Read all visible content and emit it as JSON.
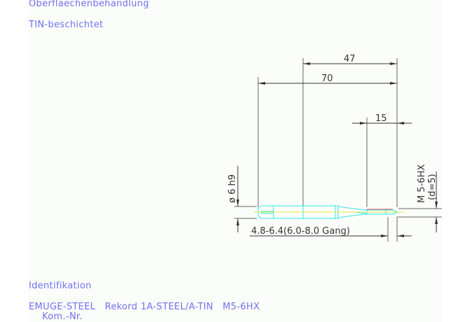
{
  "header": {
    "surface_label": "Oberflaechenbehandlung",
    "surface_value": "TIN-beschichtet"
  },
  "drawing": {
    "dim_overall": "70",
    "dim_47": "47",
    "dim_thread_length": "15",
    "dim_shank": "ø 6 h9",
    "dim_thread": "M 5-6HX",
    "dim_thread_d": "(d=5)",
    "dim_core": "4.8-6.4(6.0-8.0 Gang)",
    "colors": {
      "tool": "#33e6e6",
      "centerline": "#e6e640",
      "thread_edge": "#ee4444",
      "dimension": "#555555",
      "text": "#7070ee"
    }
  },
  "footer": {
    "ident_label": "Identifikation",
    "ident_value": "EMUGE-STEEL   Rekord 1A-STEEL/A-TIN   M5-6HX",
    "kom_label": "Kom.-Nr."
  }
}
